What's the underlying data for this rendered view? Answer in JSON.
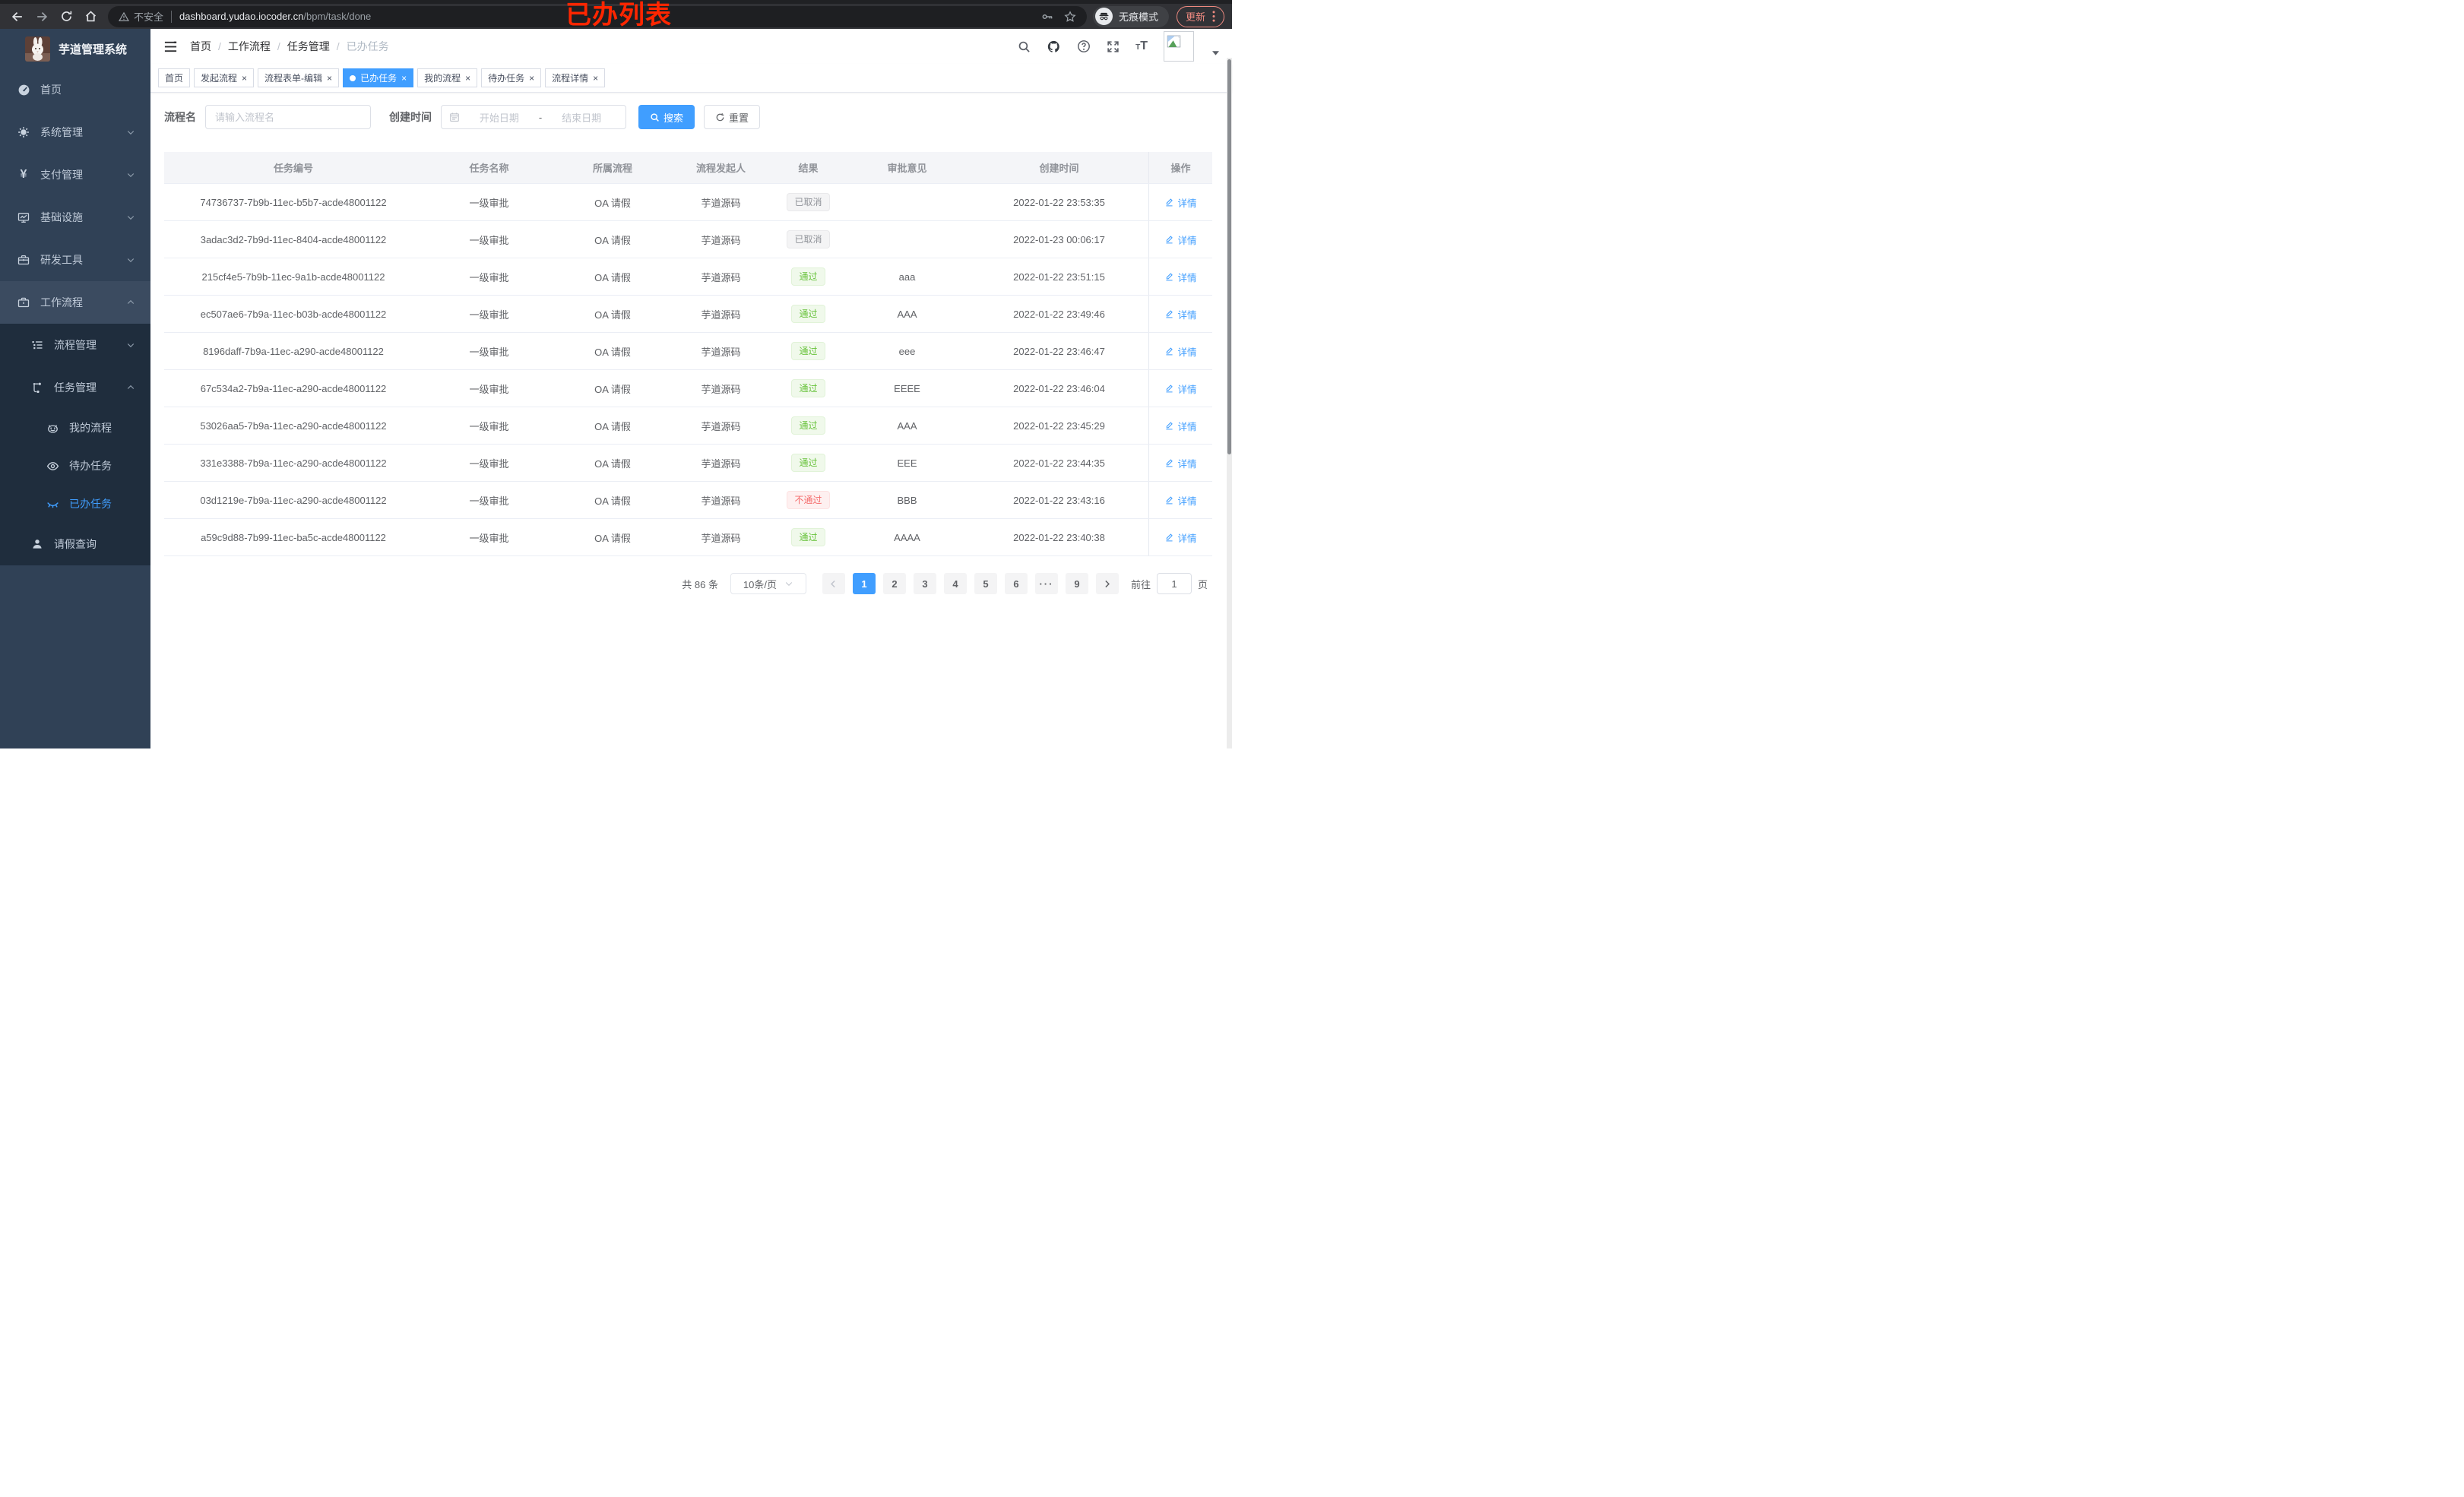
{
  "browser": {
    "security_label": "不安全",
    "url_host": "dashboard.yudao.iocoder.cn",
    "url_path": "/bpm/task/done",
    "incognito_label": "无痕模式",
    "update_label": "更新",
    "annotation": "已办列表"
  },
  "sidebar": {
    "logo_title": "芋道管理系统",
    "items": [
      {
        "label": "首页",
        "icon": "dashboard-icon",
        "level": 1
      },
      {
        "label": "系统管理",
        "icon": "gear-icon",
        "level": 1,
        "chevron": "down"
      },
      {
        "label": "支付管理",
        "icon": "yen-icon",
        "level": 1,
        "chevron": "down"
      },
      {
        "label": "基础设施",
        "icon": "monitor-icon",
        "level": 1,
        "chevron": "down"
      },
      {
        "label": "研发工具",
        "icon": "toolbox-icon",
        "level": 1,
        "chevron": "down"
      },
      {
        "label": "工作流程",
        "icon": "briefcase-icon",
        "level": 1,
        "chevron": "up",
        "expanded": true
      },
      {
        "label": "流程管理",
        "icon": "list-tree-icon",
        "level": 2,
        "chevron": "down",
        "submenu": true
      },
      {
        "label": "任务管理",
        "icon": "flow-icon",
        "level": 2,
        "chevron": "up",
        "submenu": true
      },
      {
        "label": "我的流程",
        "icon": "robot-face-icon",
        "level": 3,
        "submenu": true
      },
      {
        "label": "待办任务",
        "icon": "eye-open-icon",
        "level": 3,
        "submenu": true
      },
      {
        "label": "已办任务",
        "icon": "eye-closed-icon",
        "level": 3,
        "submenu": true,
        "active": true
      },
      {
        "label": "请假查询",
        "icon": "user-icon",
        "level": 2,
        "submenu": true
      }
    ]
  },
  "topbar": {
    "breadcrumb": [
      "首页",
      "工作流程",
      "任务管理",
      "已办任务"
    ]
  },
  "tabs": [
    {
      "label": "首页",
      "closable": false,
      "active": false
    },
    {
      "label": "发起流程",
      "closable": true,
      "active": false
    },
    {
      "label": "流程表单-编辑",
      "closable": true,
      "active": false
    },
    {
      "label": "已办任务",
      "closable": true,
      "active": true
    },
    {
      "label": "我的流程",
      "closable": true,
      "active": false
    },
    {
      "label": "待办任务",
      "closable": true,
      "active": false
    },
    {
      "label": "流程详情",
      "closable": true,
      "active": false
    }
  ],
  "filters": {
    "name_label": "流程名",
    "name_placeholder": "请输入流程名",
    "time_label": "创建时间",
    "start_placeholder": "开始日期",
    "range_separator": "-",
    "end_placeholder": "结束日期",
    "search_label": "搜索",
    "reset_label": "重置"
  },
  "table": {
    "columns": [
      "任务编号",
      "任务名称",
      "所属流程",
      "流程发起人",
      "结果",
      "审批意见",
      "创建时间",
      "操作"
    ],
    "detail_label": "详情",
    "rows": [
      {
        "id": "74736737-7b9b-11ec-b5b7-acde48001122",
        "name": "一级审批",
        "process": "OA 请假",
        "starter": "芋道源码",
        "result": "已取消",
        "result_type": "info",
        "opinion": "",
        "time": "2022-01-22 23:53:35"
      },
      {
        "id": "3adac3d2-7b9d-11ec-8404-acde48001122",
        "name": "一级审批",
        "process": "OA 请假",
        "starter": "芋道源码",
        "result": "已取消",
        "result_type": "info",
        "opinion": "",
        "time": "2022-01-23 00:06:17"
      },
      {
        "id": "215cf4e5-7b9b-11ec-9a1b-acde48001122",
        "name": "一级审批",
        "process": "OA 请假",
        "starter": "芋道源码",
        "result": "通过",
        "result_type": "success",
        "opinion": "aaa",
        "time": "2022-01-22 23:51:15"
      },
      {
        "id": "ec507ae6-7b9a-11ec-b03b-acde48001122",
        "name": "一级审批",
        "process": "OA 请假",
        "starter": "芋道源码",
        "result": "通过",
        "result_type": "success",
        "opinion": "AAA",
        "time": "2022-01-22 23:49:46"
      },
      {
        "id": "8196daff-7b9a-11ec-a290-acde48001122",
        "name": "一级审批",
        "process": "OA 请假",
        "starter": "芋道源码",
        "result": "通过",
        "result_type": "success",
        "opinion": "eee",
        "time": "2022-01-22 23:46:47"
      },
      {
        "id": "67c534a2-7b9a-11ec-a290-acde48001122",
        "name": "一级审批",
        "process": "OA 请假",
        "starter": "芋道源码",
        "result": "通过",
        "result_type": "success",
        "opinion": "EEEE",
        "time": "2022-01-22 23:46:04"
      },
      {
        "id": "53026aa5-7b9a-11ec-a290-acde48001122",
        "name": "一级审批",
        "process": "OA 请假",
        "starter": "芋道源码",
        "result": "通过",
        "result_type": "success",
        "opinion": "AAA",
        "time": "2022-01-22 23:45:29"
      },
      {
        "id": "331e3388-7b9a-11ec-a290-acde48001122",
        "name": "一级审批",
        "process": "OA 请假",
        "starter": "芋道源码",
        "result": "通过",
        "result_type": "success",
        "opinion": "EEE",
        "time": "2022-01-22 23:44:35"
      },
      {
        "id": "03d1219e-7b9a-11ec-a290-acde48001122",
        "name": "一级审批",
        "process": "OA 请假",
        "starter": "芋道源码",
        "result": "不通过",
        "result_type": "danger",
        "opinion": "BBB",
        "time": "2022-01-22 23:43:16"
      },
      {
        "id": "a59c9d88-7b99-11ec-ba5c-acde48001122",
        "name": "一级审批",
        "process": "OA 请假",
        "starter": "芋道源码",
        "result": "通过",
        "result_type": "success",
        "opinion": "AAAA",
        "time": "2022-01-22 23:40:38"
      }
    ]
  },
  "pagination": {
    "total_label": "共 86 条",
    "page_size": "10条/页",
    "pages": [
      "1",
      "2",
      "3",
      "4",
      "5",
      "6",
      "···",
      "9"
    ],
    "active_page": "1",
    "jump_prefix": "前往",
    "jump_value": "1",
    "jump_suffix": "页"
  },
  "colors": {
    "accent": "#409eff",
    "success": "#67c23a",
    "danger": "#f56c6c",
    "info": "#909399",
    "sidebar_bg": "#304156",
    "submenu_bg": "#1f2d3d",
    "annotation": "#ff2600",
    "update_accent": "#ef8a80"
  }
}
